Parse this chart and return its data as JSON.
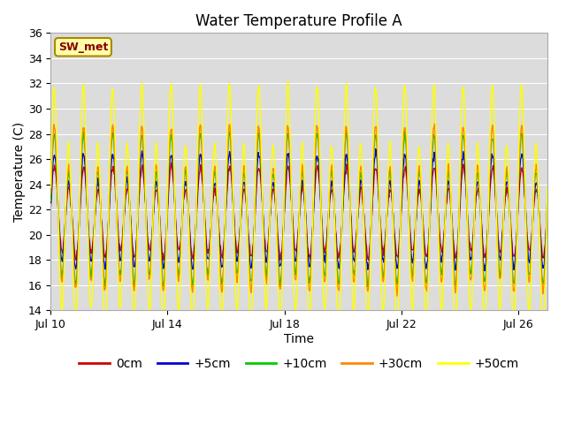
{
  "title": "Water Temperature Profile A",
  "xlabel": "Time",
  "ylabel": "Temperature (C)",
  "ylim": [
    14,
    36
  ],
  "yticks": [
    14,
    16,
    18,
    20,
    22,
    24,
    26,
    28,
    30,
    32,
    34,
    36
  ],
  "background_color": "#ffffff",
  "plot_bg_color": "#dcdcdc",
  "series": [
    {
      "label": "0cm",
      "color": "#cc0000",
      "lw": 1.0,
      "amp": 3.0,
      "phase": 0.0,
      "extra_amp": 0.0
    },
    {
      "label": "+5cm",
      "color": "#0000cc",
      "lw": 1.0,
      "amp": 3.8,
      "phase": 0.05,
      "extra_amp": 0.5
    },
    {
      "label": "+10cm",
      "color": "#00cc00",
      "lw": 1.0,
      "amp": 5.0,
      "phase": 0.08,
      "extra_amp": 1.5
    },
    {
      "label": "+30cm",
      "color": "#ff8800",
      "lw": 1.0,
      "amp": 5.5,
      "phase": 0.1,
      "extra_amp": 2.0
    },
    {
      "label": "+50cm",
      "color": "#ffff00",
      "lw": 1.0,
      "amp": 8.0,
      "phase": 0.12,
      "extra_amp": 3.0
    }
  ],
  "annotation_text": "SW_met",
  "annotation_bg": "#ffffaa",
  "annotation_fg": "#880000",
  "annotation_border": "#aa8800",
  "base_temp": 21.5,
  "start_day": 10,
  "end_day": 27,
  "x_tick_positions": [
    10,
    14,
    18,
    22,
    26
  ],
  "x_tick_labels": [
    "Jul 10",
    "Jul 14",
    "Jul 18",
    "Jul 22",
    "Jul 26"
  ],
  "figsize": [
    6.4,
    4.8
  ],
  "dpi": 100
}
